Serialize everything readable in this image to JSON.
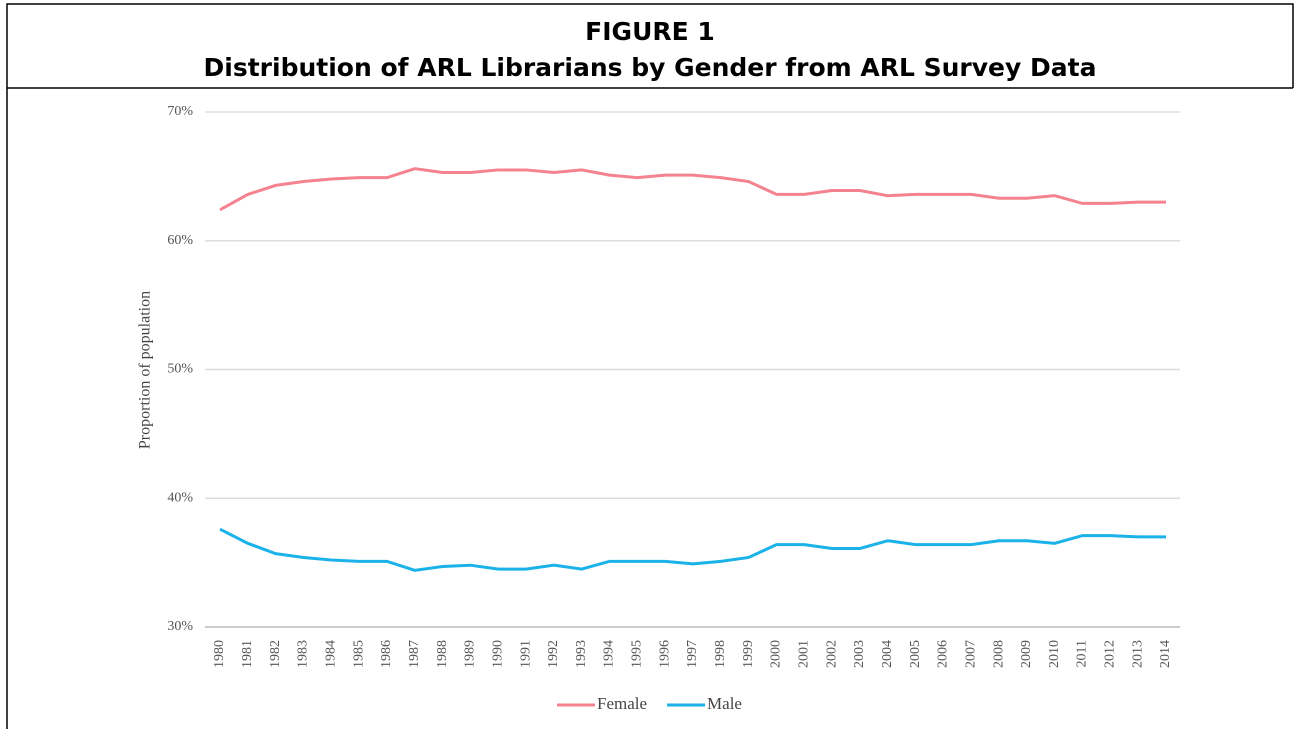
{
  "figure_label": "FIGURE 1",
  "chart_data": {
    "type": "line",
    "title": "Distribution of ARL Librarians by Gender from ARL Survey Data",
    "y_label": "Proportion of population",
    "categories": [
      "1980",
      "1981",
      "1982",
      "1983",
      "1984",
      "1985",
      "1986",
      "1987",
      "1988",
      "1989",
      "1990",
      "1991",
      "1992",
      "1993",
      "1994",
      "1995",
      "1996",
      "1997",
      "1998",
      "1999",
      "2000",
      "2001",
      "2002",
      "2003",
      "2004",
      "2005",
      "2006",
      "2007",
      "2008",
      "2009",
      "2010",
      "2011",
      "2012",
      "2013",
      "2014"
    ],
    "series": [
      {
        "name": "Female",
        "color": "#f4838f",
        "values": [
          62.4,
          63.6,
          64.3,
          64.6,
          64.8,
          64.9,
          64.9,
          65.6,
          65.3,
          65.3,
          65.5,
          65.5,
          65.3,
          65.5,
          65.1,
          64.9,
          65.1,
          65.1,
          64.9,
          64.6,
          63.6,
          63.6,
          63.9,
          63.9,
          63.5,
          63.6,
          63.6,
          63.6,
          63.3,
          63.3,
          63.5,
          62.9,
          62.9,
          63.0,
          63.0
        ]
      },
      {
        "name": "Male",
        "color": "#1ab2e8",
        "values": [
          37.6,
          36.5,
          35.7,
          35.4,
          35.2,
          35.1,
          35.1,
          34.4,
          34.7,
          34.8,
          34.5,
          34.5,
          34.8,
          34.5,
          35.1,
          35.1,
          35.1,
          34.9,
          35.1,
          35.4,
          36.4,
          36.4,
          36.1,
          36.1,
          36.7,
          36.4,
          36.4,
          36.4,
          36.7,
          36.7,
          36.5,
          37.1,
          37.1,
          37.0,
          37.0
        ]
      }
    ],
    "ylim": [
      30,
      70
    ],
    "yticks": [
      {
        "value": 30,
        "label": "30%"
      },
      {
        "value": 40,
        "label": "40%"
      },
      {
        "value": 50,
        "label": "50%"
      },
      {
        "value": 60,
        "label": "60%"
      },
      {
        "value": 70,
        "label": "70%"
      }
    ],
    "grid": true,
    "legend": "bottom"
  }
}
